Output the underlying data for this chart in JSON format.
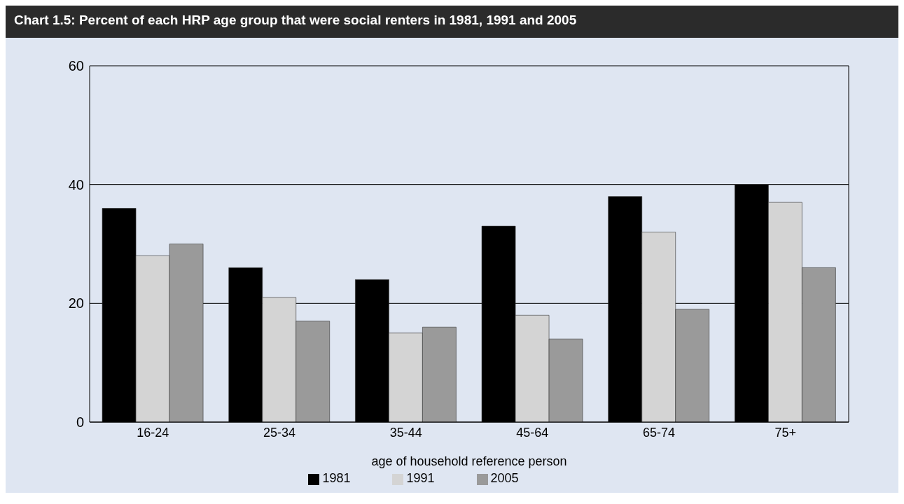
{
  "chart_data": {
    "type": "bar",
    "title": "Chart 1.5: Percent of each HRP age group that were social renters in 1981, 1991 and 2005",
    "xlabel": "age of household reference person",
    "categories": [
      "16-24",
      "25-34",
      "35-44",
      "45-64",
      "65-74",
      "75+"
    ],
    "series": [
      {
        "name": "1981",
        "color": "#000000",
        "values": [
          36,
          26,
          24,
          33,
          38,
          40
        ]
      },
      {
        "name": "1991",
        "color": "#d4d4d4",
        "values": [
          28,
          21,
          15,
          18,
          32,
          37
        ]
      },
      {
        "name": "2005",
        "color": "#9a9a9a",
        "values": [
          30,
          17,
          16,
          14,
          19,
          26
        ]
      }
    ],
    "ylim": [
      0,
      60
    ],
    "yticks": [
      0,
      20,
      40,
      60
    ],
    "grid": "y",
    "legend": "bottom"
  }
}
